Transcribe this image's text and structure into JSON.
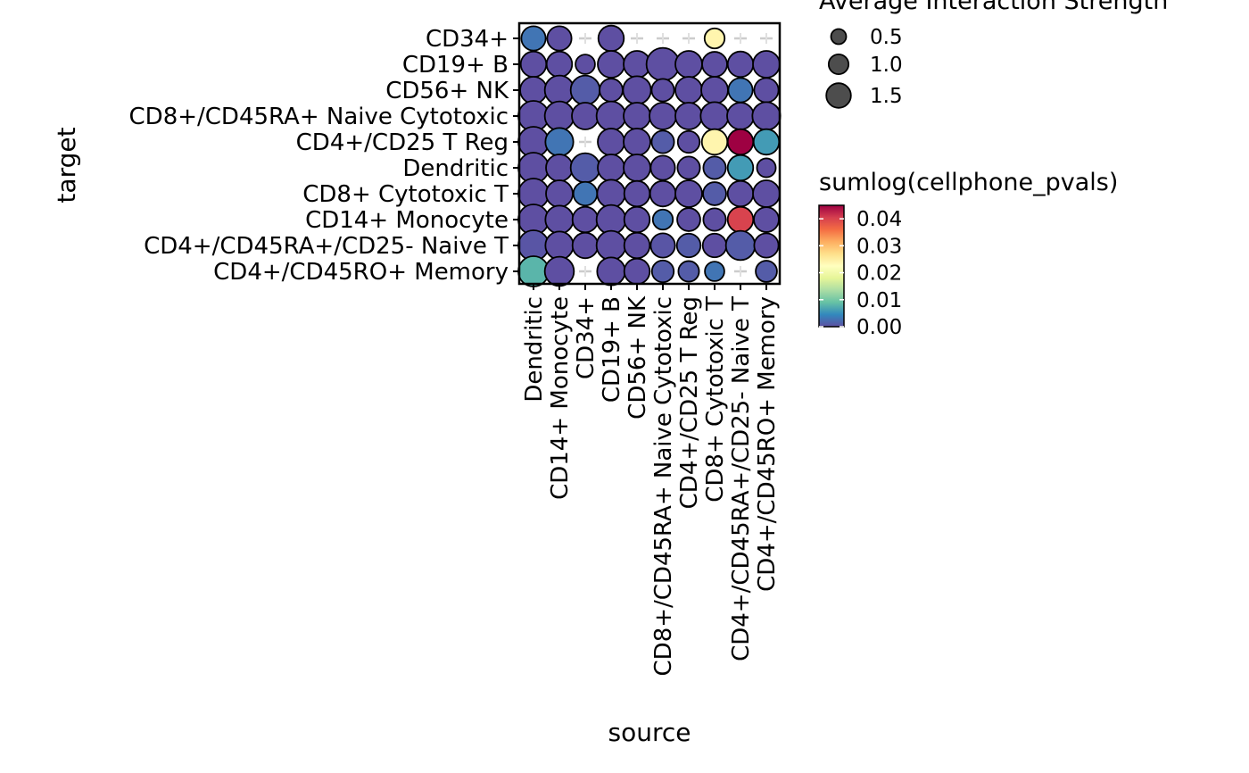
{
  "chart_data": {
    "type": "dotplot",
    "xlabel": "source",
    "ylabel": "target",
    "x_categories": [
      "Dendritic",
      "CD14+ Monocyte",
      "CD34+",
      "CD19+ B",
      "CD56+ NK",
      "CD8+/CD45RA+ Naive Cytotoxic",
      "CD4+/CD25 T Reg",
      "CD8+ Cytotoxic T",
      "CD4+/CD45RA+/CD25- Naive T",
      "CD4+/CD45RO+ Memory"
    ],
    "y_categories": [
      "CD34+",
      "CD19+ B",
      "CD56+ NK",
      "CD8+/CD45RA+ Naive Cytotoxic",
      "CD4+/CD25 T Reg",
      "Dendritic",
      "CD8+ Cytotoxic T",
      "CD14+ Monocyte",
      "CD4+/CD45RA+/CD25- Naive T",
      "CD4+/CD45RO+ Memory"
    ],
    "size_legend": {
      "title": "Average Interaction Strength",
      "values": [
        0.5,
        1.0,
        1.5
      ],
      "labels": [
        "0.5",
        "1.0",
        "1.5"
      ]
    },
    "color_legend": {
      "title": "sumlog(cellphone_pvals)",
      "min": 0.0,
      "max": 0.045,
      "ticks": [
        0.0,
        0.01,
        0.02,
        0.03,
        0.04
      ],
      "tick_labels": [
        "0.00",
        "0.01",
        "0.02",
        "0.03",
        "0.04"
      ],
      "palette": [
        "#5E4FA2",
        "#3288BD",
        "#66C2A5",
        "#ABDDA4",
        "#E6F598",
        "#FFFFBF",
        "#FEE08B",
        "#FDAE61",
        "#F46D43",
        "#D53E4F",
        "#9E0142"
      ]
    },
    "points": [
      {
        "source": "Dendritic",
        "target": "CD34+",
        "size": 0.9,
        "pval": 0.003
      },
      {
        "source": "CD14+ Monocyte",
        "target": "CD34+",
        "size": 0.9,
        "pval": 0.0
      },
      {
        "source": "CD19+ B",
        "target": "CD34+",
        "size": 1.0,
        "pval": 0.0
      },
      {
        "source": "CD8+ Cytotoxic T",
        "target": "CD34+",
        "size": 0.55,
        "pval": 0.024
      },
      {
        "source": "Dendritic",
        "target": "CD19+ B",
        "size": 1.0,
        "pval": 0.0
      },
      {
        "source": "CD14+ Monocyte",
        "target": "CD19+ B",
        "size": 1.0,
        "pval": 0.0
      },
      {
        "source": "CD34+",
        "target": "CD19+ B",
        "size": 0.5,
        "pval": 0.0
      },
      {
        "source": "CD19+ B",
        "target": "CD19+ B",
        "size": 1.1,
        "pval": 0.0
      },
      {
        "source": "CD56+ NK",
        "target": "CD19+ B",
        "size": 1.1,
        "pval": 0.0
      },
      {
        "source": "CD8+/CD45RA+ Naive Cytotoxic",
        "target": "CD19+ B",
        "size": 1.6,
        "pval": 0.0
      },
      {
        "source": "CD4+/CD25 T Reg",
        "target": "CD19+ B",
        "size": 1.1,
        "pval": 0.0
      },
      {
        "source": "CD8+ Cytotoxic T",
        "target": "CD19+ B",
        "size": 0.95,
        "pval": 0.0
      },
      {
        "source": "CD4+/CD45RA+/CD25- Naive T",
        "target": "CD19+ B",
        "size": 1.0,
        "pval": 0.0
      },
      {
        "source": "CD4+/CD45RO+ Memory",
        "target": "CD19+ B",
        "size": 1.1,
        "pval": 0.0
      },
      {
        "source": "Dendritic",
        "target": "CD56+ NK",
        "size": 1.1,
        "pval": 0.0
      },
      {
        "source": "CD14+ Monocyte",
        "target": "CD56+ NK",
        "size": 1.3,
        "pval": 0.0
      },
      {
        "source": "CD34+",
        "target": "CD56+ NK",
        "size": 1.3,
        "pval": 0.001
      },
      {
        "source": "CD19+ B",
        "target": "CD56+ NK",
        "size": 0.8,
        "pval": 0.0
      },
      {
        "source": "CD56+ NK",
        "target": "CD56+ NK",
        "size": 1.2,
        "pval": 0.0
      },
      {
        "source": "CD8+/CD45RA+ Naive Cytotoxic",
        "target": "CD56+ NK",
        "size": 0.75,
        "pval": 0.0
      },
      {
        "source": "CD4+/CD25 T Reg",
        "target": "CD56+ NK",
        "size": 1.1,
        "pval": 0.0
      },
      {
        "source": "CD8+ Cytotoxic T",
        "target": "CD56+ NK",
        "size": 1.1,
        "pval": 0.0
      },
      {
        "source": "CD4+/CD45RA+/CD25- Naive T",
        "target": "CD56+ NK",
        "size": 0.9,
        "pval": 0.003
      },
      {
        "source": "CD4+/CD45RO+ Memory",
        "target": "CD56+ NK",
        "size": 0.9,
        "pval": 0.0
      },
      {
        "source": "Dendritic",
        "target": "CD8+/CD45RA+ Naive Cytotoxic",
        "size": 1.4,
        "pval": 0.0
      },
      {
        "source": "CD14+ Monocyte",
        "target": "CD8+/CD45RA+ Naive Cytotoxic",
        "size": 1.3,
        "pval": 0.0
      },
      {
        "source": "CD34+",
        "target": "CD8+/CD45RA+ Naive Cytotoxic",
        "size": 1.1,
        "pval": 0.0
      },
      {
        "source": "CD19+ B",
        "target": "CD8+/CD45RA+ Naive Cytotoxic",
        "size": 1.3,
        "pval": 0.0
      },
      {
        "source": "CD56+ NK",
        "target": "CD8+/CD45RA+ Naive Cytotoxic",
        "size": 1.1,
        "pval": 0.0
      },
      {
        "source": "CD8+/CD45RA+ Naive Cytotoxic",
        "target": "CD8+/CD45RA+ Naive Cytotoxic",
        "size": 1.1,
        "pval": 0.0
      },
      {
        "source": "CD4+/CD25 T Reg",
        "target": "CD8+/CD45RA+ Naive Cytotoxic",
        "size": 1.1,
        "pval": 0.0
      },
      {
        "source": "CD8+ Cytotoxic T",
        "target": "CD8+/CD45RA+ Naive Cytotoxic",
        "size": 1.2,
        "pval": 0.0
      },
      {
        "source": "CD4+/CD45RA+/CD25- Naive T",
        "target": "CD8+/CD45RA+ Naive Cytotoxic",
        "size": 1.1,
        "pval": 0.0
      },
      {
        "source": "CD4+/CD45RO+ Memory",
        "target": "CD8+/CD45RA+ Naive Cytotoxic",
        "size": 1.2,
        "pval": 0.0
      },
      {
        "source": "Dendritic",
        "target": "CD4+/CD25 T Reg",
        "size": 1.4,
        "pval": 0.0
      },
      {
        "source": "CD14+ Monocyte",
        "target": "CD4+/CD25 T Reg",
        "size": 1.2,
        "pval": 0.003
      },
      {
        "source": "CD19+ B",
        "target": "CD4+/CD25 T Reg",
        "size": 1.1,
        "pval": 0.0
      },
      {
        "source": "CD56+ NK",
        "target": "CD4+/CD25 T Reg",
        "size": 1.1,
        "pval": 0.0
      },
      {
        "source": "CD8+/CD45RA+ Naive Cytotoxic",
        "target": "CD4+/CD25 T Reg",
        "size": 0.75,
        "pval": 0.001
      },
      {
        "source": "CD4+/CD25 T Reg",
        "target": "CD4+/CD25 T Reg",
        "size": 0.7,
        "pval": 0.0
      },
      {
        "source": "CD8+ Cytotoxic T",
        "target": "CD4+/CD25 T Reg",
        "size": 1.0,
        "pval": 0.024
      },
      {
        "source": "CD4+/CD45RA+/CD25- Naive T",
        "target": "CD4+/CD25 T Reg",
        "size": 1.0,
        "pval": 0.045
      },
      {
        "source": "CD4+/CD45RO+ Memory",
        "target": "CD4+/CD25 T Reg",
        "size": 1.0,
        "pval": 0.006
      },
      {
        "source": "Dendritic",
        "target": "Dendritic",
        "size": 1.4,
        "pval": 0.0
      },
      {
        "source": "CD14+ Monocyte",
        "target": "Dendritic",
        "size": 1.1,
        "pval": 0.0
      },
      {
        "source": "CD34+",
        "target": "Dendritic",
        "size": 1.3,
        "pval": 0.001
      },
      {
        "source": "CD19+ B",
        "target": "Dendritic",
        "size": 1.1,
        "pval": 0.0
      },
      {
        "source": "CD56+ NK",
        "target": "Dendritic",
        "size": 1.1,
        "pval": 0.0
      },
      {
        "source": "CD8+/CD45RA+ Naive Cytotoxic",
        "target": "Dendritic",
        "size": 0.9,
        "pval": 0.0
      },
      {
        "source": "CD4+/CD25 T Reg",
        "target": "Dendritic",
        "size": 0.75,
        "pval": 0.0
      },
      {
        "source": "CD8+ Cytotoxic T",
        "target": "Dendritic",
        "size": 0.75,
        "pval": 0.001
      },
      {
        "source": "CD4+/CD45RA+/CD25- Naive T",
        "target": "Dendritic",
        "size": 1.0,
        "pval": 0.006
      },
      {
        "source": "CD4+/CD45RO+ Memory",
        "target": "Dendritic",
        "size": 0.45,
        "pval": 0.0
      },
      {
        "source": "Dendritic",
        "target": "CD8+ Cytotoxic T",
        "size": 1.4,
        "pval": 0.0
      },
      {
        "source": "CD14+ Monocyte",
        "target": "CD8+ Cytotoxic T",
        "size": 1.1,
        "pval": 0.0
      },
      {
        "source": "CD34+",
        "target": "CD8+ Cytotoxic T",
        "size": 0.85,
        "pval": 0.003
      },
      {
        "source": "CD19+ B",
        "target": "CD8+ Cytotoxic T",
        "size": 1.2,
        "pval": 0.0
      },
      {
        "source": "CD56+ NK",
        "target": "CD8+ Cytotoxic T",
        "size": 1.0,
        "pval": 0.0
      },
      {
        "source": "CD8+/CD45RA+ Naive Cytotoxic",
        "target": "CD8+ Cytotoxic T",
        "size": 1.0,
        "pval": 0.0
      },
      {
        "source": "CD4+/CD25 T Reg",
        "target": "CD8+ Cytotoxic T",
        "size": 1.1,
        "pval": 0.0
      },
      {
        "source": "CD8+ Cytotoxic T",
        "target": "CD8+ Cytotoxic T",
        "size": 0.8,
        "pval": 0.001
      },
      {
        "source": "CD4+/CD45RA+/CD25- Naive T",
        "target": "CD8+ Cytotoxic T",
        "size": 1.0,
        "pval": 0.0
      },
      {
        "source": "CD4+/CD45RO+ Memory",
        "target": "CD8+ Cytotoxic T",
        "size": 1.1,
        "pval": 0.0
      },
      {
        "source": "Dendritic",
        "target": "CD14+ Monocyte",
        "size": 1.4,
        "pval": 0.0
      },
      {
        "source": "CD14+ Monocyte",
        "target": "CD14+ Monocyte",
        "size": 1.2,
        "pval": 0.0
      },
      {
        "source": "CD34+",
        "target": "CD14+ Monocyte",
        "size": 1.0,
        "pval": 0.0
      },
      {
        "source": "CD19+ B",
        "target": "CD14+ Monocyte",
        "size": 1.3,
        "pval": 0.0
      },
      {
        "source": "CD56+ NK",
        "target": "CD14+ Monocyte",
        "size": 1.0,
        "pval": 0.0
      },
      {
        "source": "CD8+/CD45RA+ Naive Cytotoxic",
        "target": "CD14+ Monocyte",
        "size": 0.55,
        "pval": 0.003
      },
      {
        "source": "CD4+/CD25 T Reg",
        "target": "CD14+ Monocyte",
        "size": 0.8,
        "pval": 0.0
      },
      {
        "source": "CD8+ Cytotoxic T",
        "target": "CD14+ Monocyte",
        "size": 0.75,
        "pval": 0.0
      },
      {
        "source": "CD4+/CD45RA+/CD25- Naive T",
        "target": "CD14+ Monocyte",
        "size": 1.0,
        "pval": 0.04
      },
      {
        "source": "CD4+/CD45RO+ Memory",
        "target": "CD14+ Monocyte",
        "size": 0.95,
        "pval": 0.0
      },
      {
        "source": "Dendritic",
        "target": "CD4+/CD45RA+/CD25- Naive T",
        "size": 1.4,
        "pval": 0.0005
      },
      {
        "source": "CD14+ Monocyte",
        "target": "CD4+/CD45RA+/CD25- Naive T",
        "size": 1.2,
        "pval": 0.0
      },
      {
        "source": "CD34+",
        "target": "CD4+/CD45RA+/CD25- Naive T",
        "size": 1.0,
        "pval": 0.0
      },
      {
        "source": "CD19+ B",
        "target": "CD4+/CD45RA+/CD25- Naive T",
        "size": 1.3,
        "pval": 0.0
      },
      {
        "source": "CD56+ NK",
        "target": "CD4+/CD45RA+/CD25- Naive T",
        "size": 1.0,
        "pval": 0.0
      },
      {
        "source": "CD8+/CD45RA+ Naive Cytotoxic",
        "target": "CD4+/CD45RA+/CD25- Naive T",
        "size": 0.9,
        "pval": 0.0005
      },
      {
        "source": "CD4+/CD25 T Reg",
        "target": "CD4+/CD45RA+/CD25- Naive T",
        "size": 0.85,
        "pval": 0.001
      },
      {
        "source": "CD8+ Cytotoxic T",
        "target": "CD4+/CD45RA+/CD25- Naive T",
        "size": 0.85,
        "pval": 0.0
      },
      {
        "source": "CD4+/CD45RA+/CD25- Naive T",
        "target": "CD4+/CD45RA+/CD25- Naive T",
        "size": 1.3,
        "pval": 0.001
      },
      {
        "source": "CD4+/CD45RO+ Memory",
        "target": "CD4+/CD45RA+/CD25- Naive T",
        "size": 0.9,
        "pval": 0.0
      },
      {
        "source": "Dendritic",
        "target": "CD4+/CD45RO+ Memory",
        "size": 1.4,
        "pval": 0.008
      },
      {
        "source": "CD14+ Monocyte",
        "target": "CD4+/CD45RO+ Memory",
        "size": 1.3,
        "pval": 0.0
      },
      {
        "source": "CD19+ B",
        "target": "CD4+/CD45RO+ Memory",
        "size": 1.2,
        "pval": 0.0
      },
      {
        "source": "CD56+ NK",
        "target": "CD4+/CD45RO+ Memory",
        "size": 1.0,
        "pval": 0.0
      },
      {
        "source": "CD8+/CD45RA+ Naive Cytotoxic",
        "target": "CD4+/CD45RO+ Memory",
        "size": 0.7,
        "pval": 0.001
      },
      {
        "source": "CD4+/CD25 T Reg",
        "target": "CD4+/CD45RO+ Memory",
        "size": 0.6,
        "pval": 0.001
      },
      {
        "source": "CD8+ Cytotoxic T",
        "target": "CD4+/CD45RO+ Memory",
        "size": 0.5,
        "pval": 0.003
      },
      {
        "source": "CD4+/CD45RO+ Memory",
        "target": "CD4+/CD45RO+ Memory",
        "size": 0.65,
        "pval": 0.001
      }
    ]
  }
}
